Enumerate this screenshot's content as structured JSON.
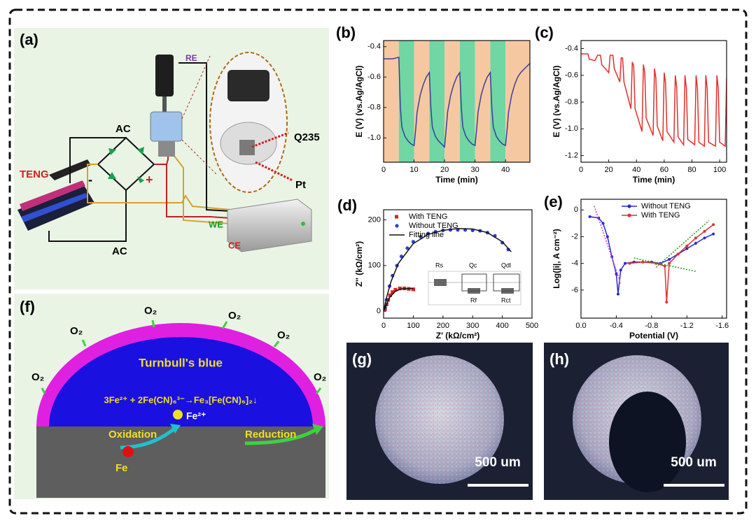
{
  "figure": {
    "panel_labels": [
      "(a)",
      "(b)",
      "(c)",
      "(d)",
      "(e)",
      "(f)",
      "(g)",
      "(h)"
    ],
    "a": {
      "re": "RE",
      "ac_top": "AC",
      "ac_bottom": "AC",
      "teng": "TENG",
      "q235": "Q235",
      "pt": "Pt",
      "we": "WE",
      "ce": "CE",
      "plus": "+",
      "minus": "-"
    },
    "d": {
      "inset_labels": [
        "Rs",
        "Qc",
        "Qdl",
        "Rf",
        "Rct"
      ]
    },
    "f": {
      "o2": [
        "O₂",
        "O₂",
        "O₂",
        "O₂",
        "O₂",
        "O₂"
      ],
      "layer": "Turnbull's blue",
      "equation": "3Fe²⁺ + 2Fe(CN)₆³⁻→Fe₃[Fe(CN)₆]₂↓",
      "ion": "Fe²⁺",
      "oxidation": "Oxidation",
      "reduction": "Reduction",
      "metal": "Fe"
    },
    "g": {
      "scale": "500 um"
    },
    "h": {
      "scale": "500 um"
    }
  },
  "chart_data": [
    {
      "type": "line",
      "xlabel": "Time (min)",
      "ylabel": "E (V) (vs.Ag/AgCl)",
      "xlim": [
        0,
        48
      ],
      "ylim": [
        -1.16,
        -0.36
      ],
      "xticks": [
        0,
        10,
        20,
        30,
        40
      ],
      "yticks": [
        -0.4,
        -0.6,
        -0.8,
        {
          "value": -1,
          "label": "-1.0"
        }
      ],
      "bands": [
        {
          "start": 0,
          "end": 5,
          "color": "#f6c8a2"
        },
        {
          "start": 5,
          "end": 10,
          "color": "#6fd6a4"
        },
        {
          "start": 10,
          "end": 15,
          "color": "#f6c8a2"
        },
        {
          "start": 15,
          "end": 20,
          "color": "#6fd6a4"
        },
        {
          "start": 20,
          "end": 25,
          "color": "#f6c8a2"
        },
        {
          "start": 25,
          "end": 30,
          "color": "#6fd6a4"
        },
        {
          "start": 30,
          "end": 35,
          "color": "#f6c8a2"
        },
        {
          "start": 35,
          "end": 40,
          "color": "#6fd6a4"
        },
        {
          "start": 40,
          "end": 48,
          "color": "#f6c8a2"
        }
      ],
      "series": [
        {
          "color": "#3b3f96",
          "marker": "none",
          "line": true,
          "x": [
            0,
            3,
            5,
            5.5,
            6,
            7,
            8,
            9,
            10,
            10.5,
            11,
            12,
            13,
            14,
            15,
            15.5,
            16,
            17,
            18,
            19,
            20,
            20.5,
            21,
            22,
            23,
            24,
            25,
            25.5,
            26,
            27,
            28,
            29,
            30,
            30.5,
            31,
            32,
            33,
            34,
            35,
            35.5,
            36,
            37,
            38,
            39,
            40,
            40.5,
            41,
            42,
            43,
            44,
            45,
            46,
            47,
            48
          ],
          "values": [
            -0.48,
            -0.48,
            -0.47,
            -0.8,
            -0.93,
            -0.99,
            -1.02,
            -1.04,
            -1.05,
            -0.95,
            -0.83,
            -0.72,
            -0.65,
            -0.6,
            -0.57,
            -0.8,
            -0.93,
            -0.99,
            -1.02,
            -1.04,
            -1.06,
            -0.95,
            -0.83,
            -0.72,
            -0.65,
            -0.6,
            -0.57,
            -0.8,
            -0.93,
            -0.99,
            -1.02,
            -1.04,
            -1.05,
            -0.95,
            -0.83,
            -0.72,
            -0.65,
            -0.6,
            -0.57,
            -0.8,
            -0.93,
            -0.99,
            -1.02,
            -1.04,
            -1.05,
            -0.95,
            -0.83,
            -0.72,
            -0.65,
            -0.6,
            -0.57,
            -0.55,
            -0.53,
            -0.51
          ]
        }
      ]
    },
    {
      "type": "line",
      "xlabel": "Time (min)",
      "ylabel": "E (V) (vs.Ag/AgCl)",
      "xlim": [
        0,
        105
      ],
      "ylim": [
        -1.25,
        -0.34
      ],
      "xticks": [
        0,
        20,
        40,
        60,
        80,
        100
      ],
      "yticks": [
        -0.4,
        -0.6,
        -0.8,
        {
          "value": -1,
          "label": "-1.0"
        },
        -1.2
      ],
      "series": [
        {
          "color": "#e0302a",
          "marker": "none",
          "line": true,
          "x": [
            0,
            5,
            6,
            10,
            12,
            14,
            15,
            20,
            21,
            23,
            24,
            28,
            29,
            30,
            31,
            36,
            37,
            38,
            39,
            44,
            45,
            46,
            47,
            52,
            53,
            54,
            55,
            59,
            60,
            61,
            62,
            67,
            68,
            69,
            70,
            74,
            75,
            76,
            77,
            82,
            83,
            84,
            85,
            89,
            90,
            91,
            92,
            97,
            98,
            99,
            100,
            104,
            105
          ],
          "values": [
            -0.44,
            -0.44,
            -0.48,
            -0.49,
            -0.45,
            -0.45,
            -0.52,
            -0.58,
            -0.45,
            -0.45,
            -0.55,
            -0.65,
            -0.47,
            -0.47,
            -0.65,
            -0.85,
            -0.5,
            -0.53,
            -0.85,
            -1.02,
            -0.52,
            -0.58,
            -0.92,
            -1.05,
            -0.55,
            -0.62,
            -0.98,
            -1.09,
            -0.58,
            -0.66,
            -1.02,
            -1.1,
            -0.6,
            -0.69,
            -1.06,
            -1.12,
            -0.6,
            -0.7,
            -1.08,
            -1.12,
            -0.6,
            -0.7,
            -1.1,
            -1.13,
            -0.6,
            -0.7,
            -1.1,
            -1.13,
            -0.6,
            -0.7,
            -1.1,
            -1.13,
            -0.62
          ]
        }
      ]
    },
    {
      "type": "scatter",
      "xlabel": "Z' (kΩ/cm²)",
      "ylabel": "Z'' (kΩ/cm²)",
      "xlim": [
        0,
        500
      ],
      "ylim": [
        -15,
        222
      ],
      "xticks": [
        0,
        100,
        200,
        300,
        400,
        500
      ],
      "yticks": [
        0,
        100,
        200
      ],
      "legend": "upper left",
      "series": [
        {
          "name": "With TENG",
          "color": "#e02020",
          "marker": "square",
          "line": false,
          "x": [
            5,
            10,
            15,
            22,
            30,
            40,
            55,
            70,
            85,
            100
          ],
          "values": [
            5,
            15,
            25,
            35,
            42,
            47,
            50,
            50,
            49,
            48
          ]
        },
        {
          "name": "Without TENG",
          "color": "#2d3fd6",
          "marker": "circle",
          "line": false,
          "x": [
            5,
            10,
            20,
            30,
            45,
            60,
            80,
            100,
            125,
            150,
            175,
            200,
            225,
            250,
            275,
            300,
            325,
            350,
            375,
            400,
            420
          ],
          "values": [
            8,
            25,
            55,
            78,
            100,
            120,
            138,
            152,
            163,
            170,
            174,
            177,
            178,
            178,
            178,
            177,
            176,
            172,
            165,
            150,
            135
          ]
        },
        {
          "name": "Fitting line",
          "color": "#111111",
          "marker": "none",
          "line": true,
          "x": [
            0,
            20,
            40,
            60,
            100,
            110,
            0,
            10,
            25,
            50,
            100,
            150,
            200,
            250,
            300,
            350,
            400,
            430
          ],
          "values": [
            0,
            30,
            44,
            49,
            50,
            null,
            0,
            30,
            65,
            105,
            148,
            168,
            177,
            181,
            180,
            172,
            152,
            130
          ]
        }
      ]
    },
    {
      "type": "line",
      "xlabel": "Potential (V)",
      "ylabel": "Log(|i|, A cm⁻²)",
      "xlim": [
        0,
        -1.65
      ],
      "ylim": [
        -8.1,
        0.8
      ],
      "xticks": [
        {
          "value": 0,
          "label": "0.0"
        },
        -0.4,
        -0.8,
        -1.2,
        -1.6
      ],
      "yticks": [
        0,
        -2,
        -4,
        -6
      ],
      "legend": "upper right",
      "series": [
        {
          "name": "Without TENG",
          "color": "#2a2ad0",
          "marker": "circle",
          "line": true,
          "x": [
            -0.1,
            -0.2,
            -0.25,
            -0.3,
            -0.35,
            -0.4,
            -0.42,
            -0.45,
            -0.5,
            -0.6,
            -0.8,
            -0.9,
            -1.0,
            -1.1,
            -1.2,
            -1.3,
            -1.4,
            -1.5
          ],
          "values": [
            -0.5,
            -0.6,
            -1,
            -2,
            -3.5,
            -4.8,
            -6.3,
            -4.5,
            -4,
            -3.9,
            -3.9,
            -4,
            -3.7,
            -3.3,
            -2.9,
            -2.5,
            -2.1,
            -1.8
          ]
        },
        {
          "name": "With TENG",
          "color": "#e03030",
          "marker": "circle",
          "line": true,
          "x": [
            -0.55,
            -0.7,
            -0.85,
            -0.95,
            -0.97,
            -1.0,
            -1.1,
            -1.2,
            -1.3,
            -1.4,
            -1.5
          ],
          "values": [
            -4,
            -3.9,
            -4,
            -4.2,
            -6.9,
            -4,
            -3.3,
            -2.7,
            -2.1,
            -1.6,
            -1.1
          ]
        },
        {
          "color": "#d040d0",
          "marker": "none",
          "line": true,
          "dash": true,
          "x": [
            -0.15,
            -0.45
          ],
          "values": [
            0.3,
            -5.5
          ]
        },
        {
          "color": "#2e9e2e",
          "marker": "none",
          "line": true,
          "dash": true,
          "x": [
            -0.6,
            -1.3
          ],
          "values": [
            -3.6,
            -4.6
          ]
        },
        {
          "color": "#2e9e2e",
          "marker": "none",
          "line": true,
          "dash": true,
          "x": [
            -0.85,
            -1.45
          ],
          "values": [
            -4.3,
            -0.8
          ]
        }
      ]
    }
  ]
}
